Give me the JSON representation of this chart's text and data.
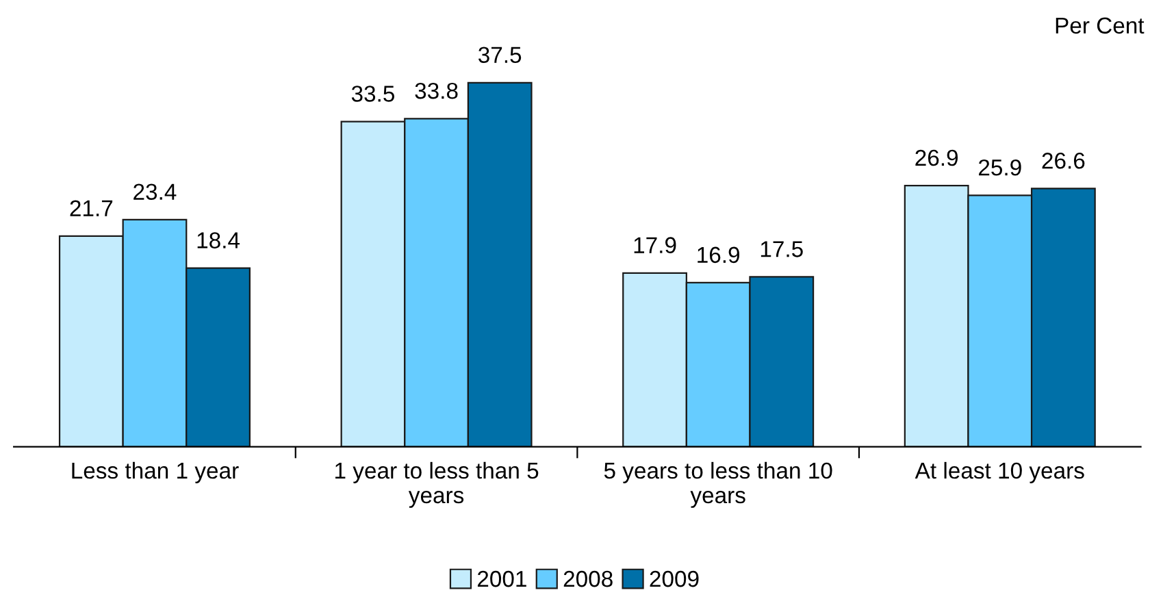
{
  "chart_data": {
    "type": "bar",
    "ylabel": "Per Cent",
    "categories": [
      "Less than 1 year",
      "1 year to less than 5 years",
      "5 years to less than 10 years",
      "At least 10 years"
    ],
    "series": [
      {
        "name": "2001",
        "color": "#c4ecfd",
        "values": [
          21.7,
          33.5,
          17.9,
          26.9
        ]
      },
      {
        "name": "2008",
        "color": "#66ccff",
        "values": [
          23.4,
          33.8,
          16.9,
          25.9
        ]
      },
      {
        "name": "2009",
        "color": "#0070a8",
        "values": [
          18.4,
          37.5,
          17.5,
          26.6
        ]
      }
    ],
    "data_labels": true,
    "legend": "bottom",
    "grid": false
  }
}
